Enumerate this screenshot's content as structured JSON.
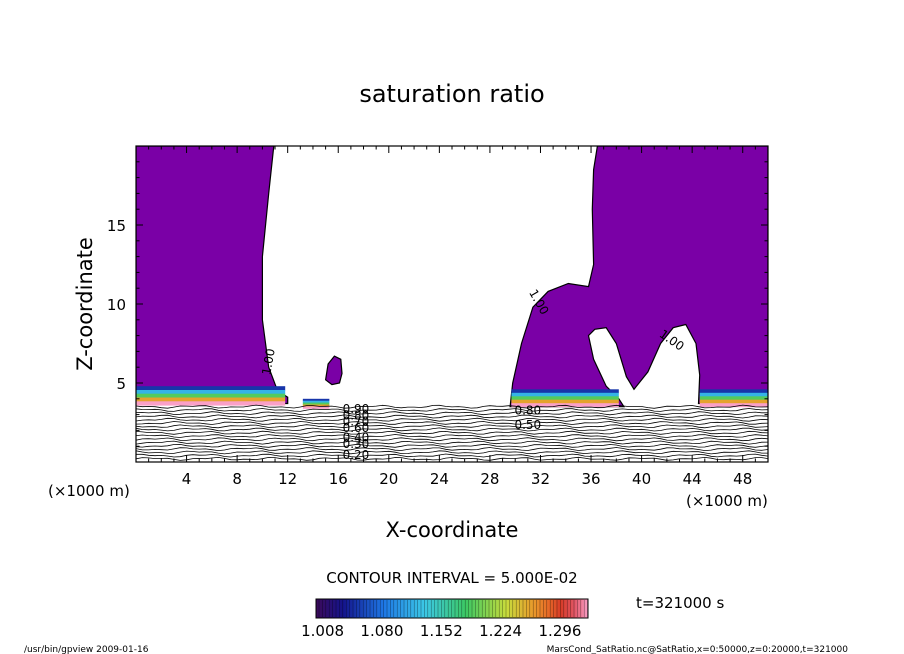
{
  "chart_data": {
    "type": "heatmap",
    "title": "saturation ratio",
    "xlabel": "X-coordinate",
    "ylabel": "Z-coordinate",
    "x_unit": "(×1000 m)",
    "z_unit": "(×1000 m)",
    "xlim": [
      0,
      50
    ],
    "ylim": [
      0,
      20
    ],
    "x_ticks": [
      4,
      8,
      12,
      16,
      20,
      24,
      28,
      32,
      36,
      40,
      44,
      48
    ],
    "y_ticks": [
      5,
      10,
      15
    ],
    "contour_interval": "CONTOUR INTERVAL = 5.000E-02",
    "time_label": "t=321000 s",
    "colorbar_ticks": [
      "1.008",
      "1.080",
      "1.152",
      "1.224",
      "1.296"
    ],
    "colorbar_range": [
      1.0,
      1.33
    ],
    "contour_labels": [
      {
        "text": "1.00",
        "x": 10.8,
        "z": 6.3,
        "angle": 80
      },
      {
        "text": "1.00",
        "x": 31.6,
        "z": 10.0,
        "angle": -60
      },
      {
        "text": "1.00",
        "x": 42.2,
        "z": 7.5,
        "angle": -35
      },
      {
        "text": "0.90",
        "x": 17.4,
        "z": 3.1,
        "angle": 0
      },
      {
        "text": "0.80",
        "x": 17.4,
        "z": 2.7,
        "angle": 0
      },
      {
        "text": "0.70",
        "x": 17.4,
        "z": 2.3,
        "angle": 0
      },
      {
        "text": "0.60",
        "x": 17.4,
        "z": 1.9,
        "angle": 0
      },
      {
        "text": "0.40",
        "x": 17.4,
        "z": 1.3,
        "angle": 0
      },
      {
        "text": "0.30",
        "x": 17.4,
        "z": 0.9,
        "angle": 0
      },
      {
        "text": "0.20",
        "x": 17.4,
        "z": 0.2,
        "angle": 0
      },
      {
        "text": "0.80",
        "x": 31.0,
        "z": 3.0,
        "angle": 0
      },
      {
        "text": "0.50",
        "x": 31.0,
        "z": 2.1,
        "angle": 0
      }
    ],
    "supersaturated_regions": [
      {
        "name": "left",
        "polygon": [
          [
            0,
            20
          ],
          [
            10.9,
            20
          ],
          [
            10.5,
            17
          ],
          [
            10,
            13
          ],
          [
            10,
            9
          ],
          [
            10.5,
            6
          ],
          [
            11.2,
            4.5
          ],
          [
            12,
            4.1
          ],
          [
            12,
            3.7
          ],
          [
            0,
            3.7
          ]
        ]
      },
      {
        "name": "right",
        "polygon": [
          [
            36.5,
            20
          ],
          [
            50,
            20
          ],
          [
            50,
            3.7
          ],
          [
            44.5,
            3.7
          ],
          [
            44.6,
            5.5
          ],
          [
            44.3,
            7.5
          ],
          [
            43.5,
            8.7
          ],
          [
            42.5,
            8.5
          ],
          [
            41.5,
            7.5
          ],
          [
            40.5,
            5.7
          ],
          [
            39.4,
            4.6
          ],
          [
            38.8,
            5.4
          ],
          [
            38,
            7.5
          ],
          [
            37.2,
            8.5
          ],
          [
            36.3,
            8.4
          ],
          [
            35.8,
            8.0
          ],
          [
            36.2,
            6.5
          ],
          [
            37.2,
            4.8
          ],
          [
            38.2,
            4.0
          ],
          [
            38.6,
            3.5
          ],
          [
            29.6,
            3.5
          ],
          [
            29.8,
            5
          ],
          [
            30.5,
            7.5
          ],
          [
            31.4,
            9.8
          ],
          [
            32.6,
            10.8
          ],
          [
            34.2,
            11.3
          ],
          [
            35.8,
            11.1
          ],
          [
            36.2,
            12.5
          ],
          [
            36.1,
            16
          ],
          [
            36.2,
            18.5
          ]
        ]
      },
      {
        "name": "bubble",
        "polygon": [
          [
            15.0,
            5.2
          ],
          [
            15.2,
            6.2
          ],
          [
            15.7,
            6.7
          ],
          [
            16.2,
            6.5
          ],
          [
            16.3,
            5.6
          ],
          [
            16.1,
            5.0
          ],
          [
            15.5,
            4.9
          ]
        ]
      }
    ],
    "high_bands": [
      {
        "x": [
          0,
          11.8
        ],
        "z": [
          3.6,
          4.8
        ]
      },
      {
        "x": [
          13.2,
          15.3
        ],
        "z": [
          3.4,
          4.0
        ]
      },
      {
        "x": [
          29.7,
          38.2
        ],
        "z": [
          3.5,
          4.6
        ]
      },
      {
        "x": [
          44.6,
          50
        ],
        "z": [
          3.5,
          4.6
        ]
      }
    ]
  },
  "footer": {
    "left": "/usr/bin/gpview  2009-01-16",
    "right": "MarsCond_SatRatio.nc@SatRatio,x=0:50000,z=0:20000,t=321000"
  }
}
